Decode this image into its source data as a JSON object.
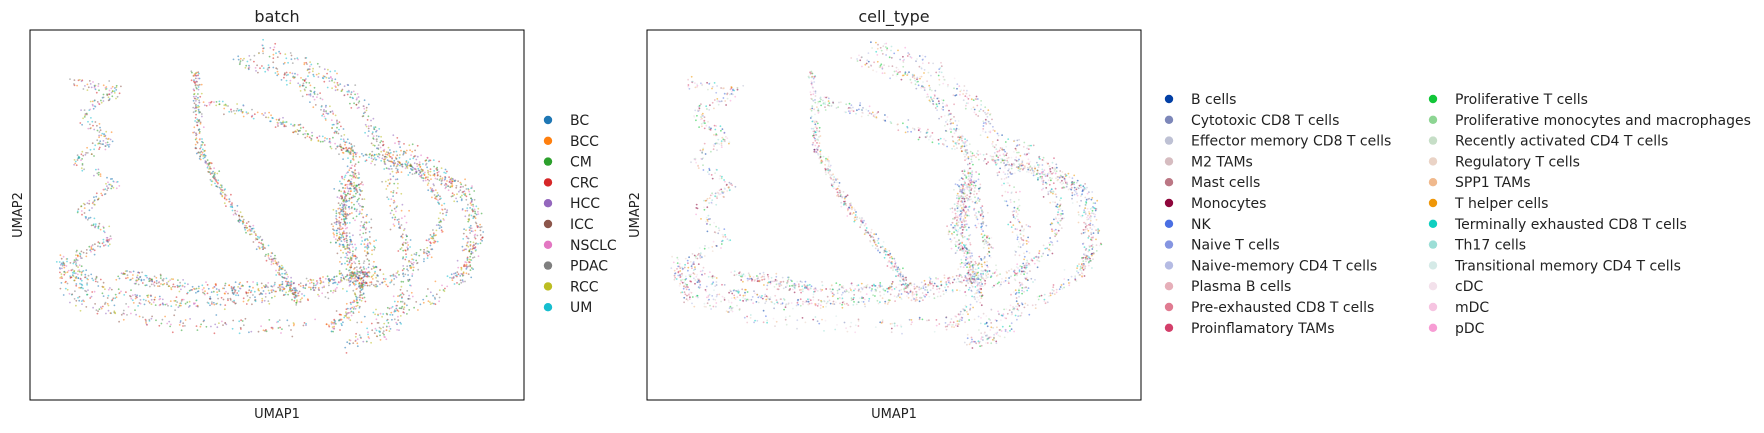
{
  "chart_data": [
    {
      "type": "scatter",
      "title": "batch",
      "xlabel": "UMAP1",
      "ylabel": "UMAP2",
      "grid": false,
      "legend_position": "right",
      "series": [
        {
          "name": "BC",
          "color": "#1f77b4"
        },
        {
          "name": "BCC",
          "color": "#ff7f0e"
        },
        {
          "name": "CM",
          "color": "#2ca02c"
        },
        {
          "name": "CRC",
          "color": "#d62728"
        },
        {
          "name": "HCC",
          "color": "#9467bd"
        },
        {
          "name": "ICC",
          "color": "#8c564b"
        },
        {
          "name": "NSCLC",
          "color": "#e377c2"
        },
        {
          "name": "PDAC",
          "color": "#7f7f7f"
        },
        {
          "name": "RCC",
          "color": "#bcbd22"
        },
        {
          "name": "UM",
          "color": "#17becf"
        }
      ]
    },
    {
      "type": "scatter",
      "title": "cell_type",
      "xlabel": "UMAP1",
      "ylabel": "UMAP2",
      "grid": false,
      "legend_position": "right",
      "legend_columns": 2,
      "series": [
        {
          "name": "B cells",
          "color": "#023fa5"
        },
        {
          "name": "Cytotoxic CD8 T cells",
          "color": "#7d87b9"
        },
        {
          "name": "Effector memory CD8 T cells",
          "color": "#bec1d4"
        },
        {
          "name": "M2 TAMs",
          "color": "#d6bcc0"
        },
        {
          "name": "Mast cells",
          "color": "#bb7784"
        },
        {
          "name": "Monocytes",
          "color": "#8e063b"
        },
        {
          "name": "NK",
          "color": "#4a6fe3"
        },
        {
          "name": "Naive T cells",
          "color": "#8595e1"
        },
        {
          "name": "Naive-memory CD4 T cells",
          "color": "#b5bbe3"
        },
        {
          "name": "Plasma B cells",
          "color": "#e6afb9"
        },
        {
          "name": "Pre-exhausted CD8 T cells",
          "color": "#e07b91"
        },
        {
          "name": "Proinflamatory TAMs",
          "color": "#d33f6a"
        },
        {
          "name": "Proliferative T cells",
          "color": "#11c638"
        },
        {
          "name": "Proliferative monocytes and macrophages",
          "color": "#8dd593"
        },
        {
          "name": "Recently activated CD4 T cells",
          "color": "#c6dec7"
        },
        {
          "name": "Regulatory T cells",
          "color": "#ead3c6"
        },
        {
          "name": "SPP1 TAMs",
          "color": "#f0b98d"
        },
        {
          "name": "T helper cells",
          "color": "#ef9708"
        },
        {
          "name": "Terminally exhausted CD8 T cells",
          "color": "#0fcfc0"
        },
        {
          "name": "Th17 cells",
          "color": "#9cded6"
        },
        {
          "name": "Transitional memory CD4 T cells",
          "color": "#d5eae7"
        },
        {
          "name": "cDC",
          "color": "#f3e1eb"
        },
        {
          "name": "mDC",
          "color": "#f6c4e1"
        },
        {
          "name": "pDC",
          "color": "#f79cd4"
        }
      ]
    }
  ]
}
